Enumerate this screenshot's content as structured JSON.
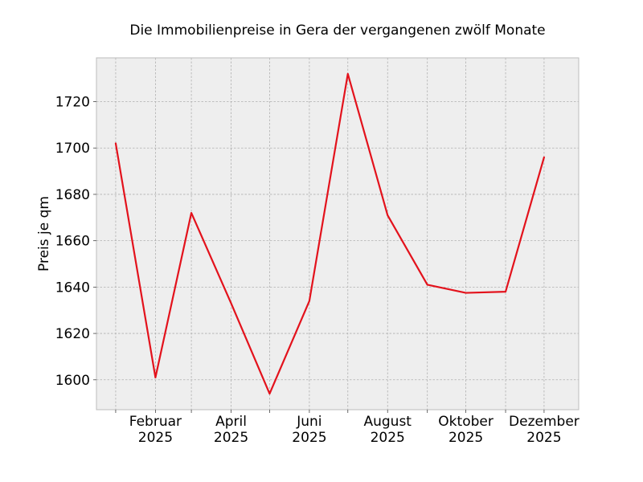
{
  "chart_data": {
    "type": "line",
    "title": "Die Immobilienpreise in Gera der vergangenen zwölf Monate",
    "xlabel": "",
    "ylabel": "Preis je qm",
    "x": [
      "2025-01",
      "2025-02",
      "2025-03",
      "2025-04",
      "2025-05",
      "2025-06",
      "2025-07",
      "2025-08",
      "2025-09",
      "2025-10",
      "2025-11",
      "2025-12"
    ],
    "x_tick_labels": [
      {
        "month": "Februar",
        "year": "2025"
      },
      {
        "month": "April",
        "year": "2025"
      },
      {
        "month": "Juni",
        "year": "2025"
      },
      {
        "month": "August",
        "year": "2025"
      },
      {
        "month": "Oktober",
        "year": "2025"
      },
      {
        "month": "Dezember",
        "year": "2025"
      }
    ],
    "x_tick_label_months": [
      "2025-02",
      "2025-04",
      "2025-06",
      "2025-08",
      "2025-10",
      "2025-12"
    ],
    "series": [
      {
        "values": [
          1702,
          1601,
          1672,
          1633,
          1594,
          1634,
          1732,
          1671,
          1641,
          1637.5,
          1638,
          1696
        ],
        "color": "#e3121c"
      }
    ],
    "yticks": [
      1600,
      1620,
      1640,
      1660,
      1680,
      1700,
      1720
    ],
    "ylim": [
      1587.1,
      1738.9
    ],
    "xlim": [
      "2024-12-17",
      "2025-12-28"
    ],
    "grid": true,
    "background_color": "#eeeeee"
  }
}
